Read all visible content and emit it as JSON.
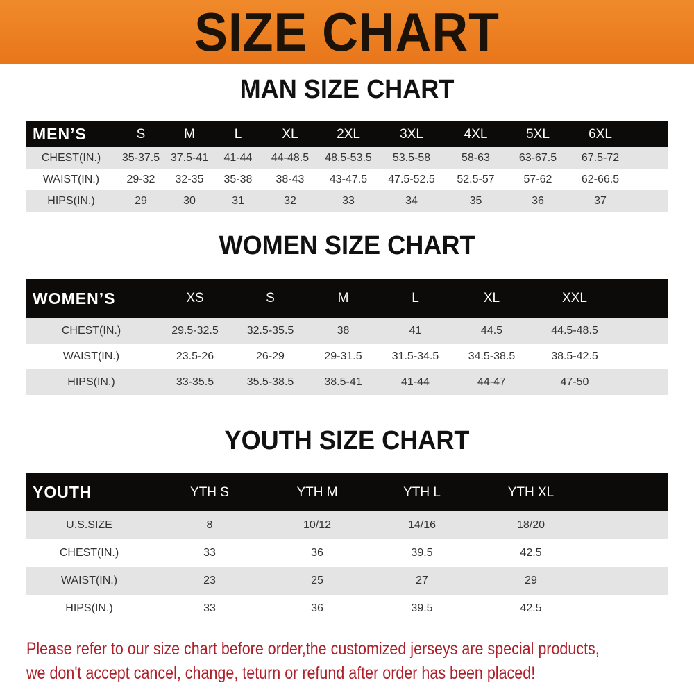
{
  "title": "SIZE CHART",
  "men": {
    "title": "MAN SIZE CHART",
    "header": "MEN’S",
    "sizes": [
      "S",
      "M",
      "L",
      "XL",
      "2XL",
      "3XL",
      "4XL",
      "5XL",
      "6XL"
    ],
    "rows": [
      {
        "label": "CHEST(IN.)",
        "values": [
          "35-37.5",
          "37.5-41",
          "41-44",
          "44-48.5",
          "48.5-53.5",
          "53.5-58",
          "58-63",
          "63-67.5",
          "67.5-72"
        ]
      },
      {
        "label": "WAIST(IN.)",
        "values": [
          "29-32",
          "32-35",
          "35-38",
          "38-43",
          "43-47.5",
          "47.5-52.5",
          "52.5-57",
          "57-62",
          "62-66.5"
        ]
      },
      {
        "label": "HIPS(IN.)",
        "values": [
          "29",
          "30",
          "31",
          "32",
          "33",
          "34",
          "35",
          "36",
          "37"
        ]
      }
    ]
  },
  "women": {
    "title": "WOMEN SIZE CHART",
    "header": "WOMEN’S",
    "sizes": [
      "XS",
      "S",
      "M",
      "L",
      "XL",
      "XXL"
    ],
    "rows": [
      {
        "label": "CHEST(IN.)",
        "values": [
          "29.5-32.5",
          "32.5-35.5",
          "38",
          "41",
          "44.5",
          "44.5-48.5"
        ]
      },
      {
        "label": "WAIST(IN.)",
        "values": [
          "23.5-26",
          "26-29",
          "29-31.5",
          "31.5-34.5",
          "34.5-38.5",
          "38.5-42.5"
        ]
      },
      {
        "label": "HIPS(IN.)",
        "values": [
          "33-35.5",
          "35.5-38.5",
          "38.5-41",
          "41-44",
          "44-47",
          "47-50"
        ]
      }
    ]
  },
  "youth": {
    "title": "YOUTH SIZE CHART",
    "header": "YOUTH",
    "sizes": [
      "YTH S",
      "YTH M",
      "YTH L",
      "YTH XL"
    ],
    "rows": [
      {
        "label": "U.S.SIZE",
        "values": [
          "8",
          "10/12",
          "14/16",
          "18/20"
        ]
      },
      {
        "label": "CHEST(IN.)",
        "values": [
          "33",
          "36",
          "39.5",
          "42.5"
        ]
      },
      {
        "label": "WAIST(IN.)",
        "values": [
          "23",
          "25",
          "27",
          "29"
        ]
      },
      {
        "label": "HIPS(IN.)",
        "values": [
          "33",
          "36",
          "39.5",
          "42.5"
        ]
      }
    ]
  },
  "notice": [
    "Please refer to our size chart before order,the customized jerseys are special products,",
    "we don't accept cancel, change, teturn or refund after order has been placed!"
  ]
}
